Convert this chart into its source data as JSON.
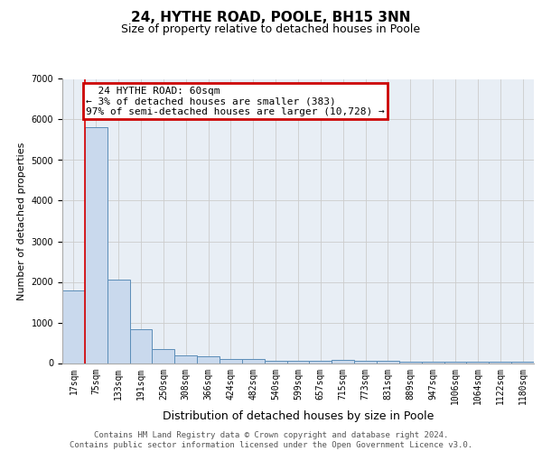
{
  "title1": "24, HYTHE ROAD, POOLE, BH15 3NN",
  "title2": "Size of property relative to detached houses in Poole",
  "xlabel": "Distribution of detached houses by size in Poole",
  "ylabel": "Number of detached properties",
  "categories": [
    "17sqm",
    "75sqm",
    "133sqm",
    "191sqm",
    "250sqm",
    "308sqm",
    "366sqm",
    "424sqm",
    "482sqm",
    "540sqm",
    "599sqm",
    "657sqm",
    "715sqm",
    "773sqm",
    "831sqm",
    "889sqm",
    "947sqm",
    "1006sqm",
    "1064sqm",
    "1122sqm",
    "1180sqm"
  ],
  "values": [
    1780,
    5800,
    2050,
    830,
    340,
    200,
    160,
    110,
    90,
    60,
    60,
    60,
    80,
    50,
    45,
    42,
    40,
    40,
    40,
    38,
    38
  ],
  "bar_color": "#c9d9ed",
  "bar_edge_color": "#5b8db8",
  "grid_color": "#cccccc",
  "bg_color": "#e8eef5",
  "annotation_text": "  24 HYTHE ROAD: 60sqm\n← 3% of detached houses are smaller (383)\n97% of semi-detached houses are larger (10,728) →",
  "annotation_box_color": "#cc0000",
  "ylim": [
    0,
    7000
  ],
  "footer": "Contains HM Land Registry data © Crown copyright and database right 2024.\nContains public sector information licensed under the Open Government Licence v3.0.",
  "title1_fontsize": 11,
  "title2_fontsize": 9,
  "xlabel_fontsize": 9,
  "ylabel_fontsize": 8,
  "tick_fontsize": 7,
  "annotation_fontsize": 8,
  "footer_fontsize": 6.5
}
